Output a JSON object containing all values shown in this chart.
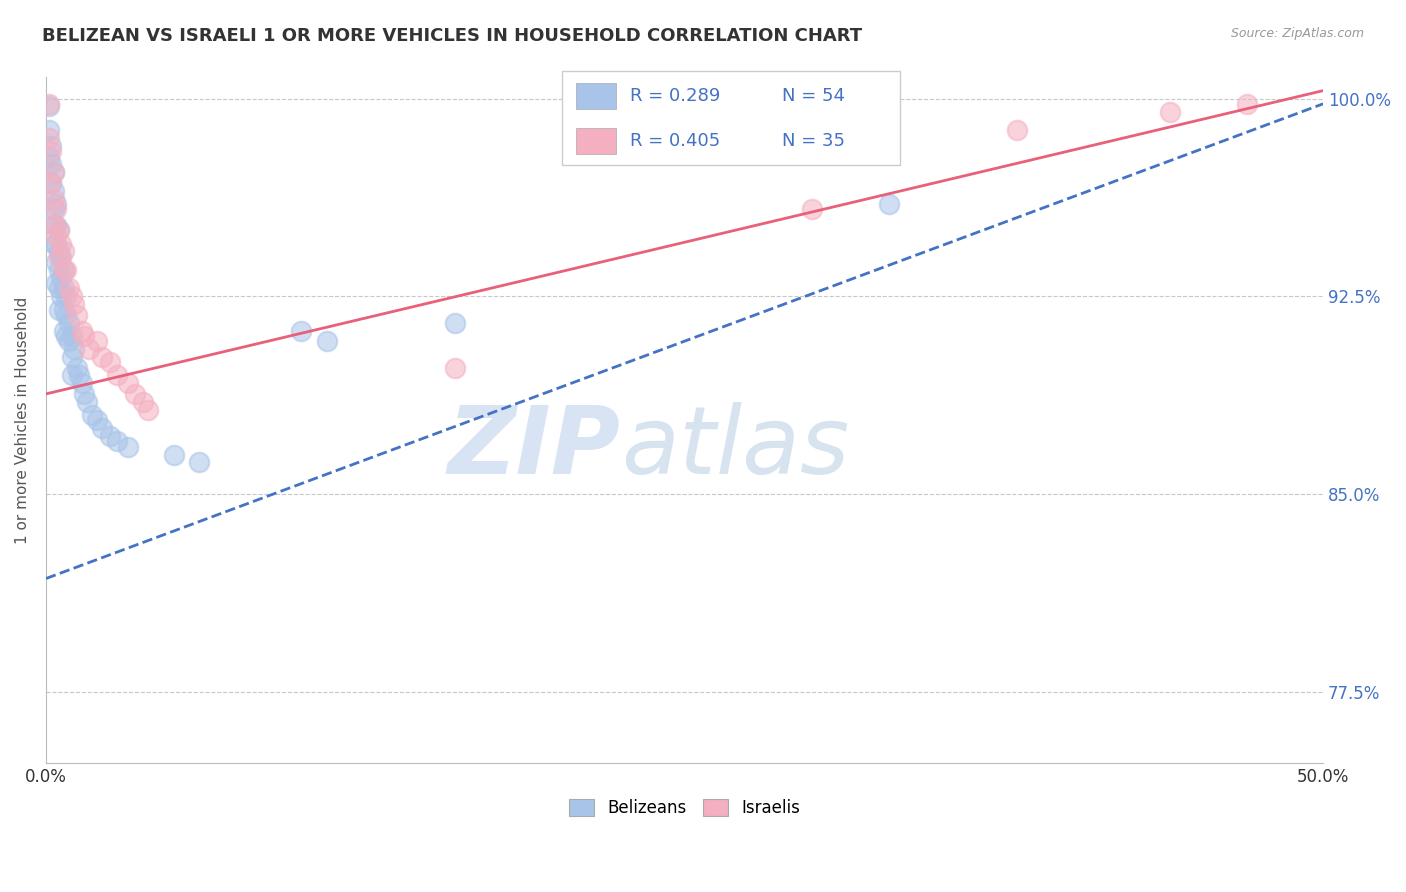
{
  "title": "BELIZEAN VS ISRAELI 1 OR MORE VEHICLES IN HOUSEHOLD CORRELATION CHART",
  "ylabel": "1 or more Vehicles in Household",
  "source": "Source: ZipAtlas.com",
  "xmin": 0.0,
  "xmax": 0.5,
  "ymin": 0.748,
  "ymax": 1.008,
  "yticks": [
    0.775,
    0.85,
    0.925,
    1.0
  ],
  "ytick_labels": [
    "77.5%",
    "85.0%",
    "92.5%",
    "100.0%"
  ],
  "belizean_color": "#a8c4e8",
  "israeli_color": "#f4afc0",
  "belizean_line_color": "#4472c4",
  "israeli_line_color": "#e8607a",
  "watermark_zip": "ZIP",
  "watermark_atlas": "atlas",
  "belizean_pts_x": [
    0.001,
    0.001,
    0.001,
    0.002,
    0.002,
    0.002,
    0.003,
    0.003,
    0.003,
    0.003,
    0.003,
    0.004,
    0.004,
    0.004,
    0.004,
    0.004,
    0.005,
    0.005,
    0.005,
    0.005,
    0.005,
    0.006,
    0.006,
    0.006,
    0.007,
    0.007,
    0.007,
    0.007,
    0.008,
    0.008,
    0.008,
    0.009,
    0.009,
    0.01,
    0.01,
    0.01,
    0.011,
    0.012,
    0.013,
    0.014,
    0.015,
    0.016,
    0.018,
    0.02,
    0.022,
    0.025,
    0.028,
    0.032,
    0.05,
    0.06,
    0.1,
    0.11,
    0.16,
    0.33
  ],
  "belizean_pts_y": [
    0.997,
    0.988,
    0.978,
    0.982,
    0.975,
    0.968,
    0.972,
    0.965,
    0.958,
    0.952,
    0.945,
    0.96,
    0.952,
    0.945,
    0.938,
    0.93,
    0.95,
    0.942,
    0.935,
    0.928,
    0.92,
    0.94,
    0.932,
    0.925,
    0.935,
    0.928,
    0.92,
    0.912,
    0.925,
    0.918,
    0.91,
    0.915,
    0.908,
    0.91,
    0.902,
    0.895,
    0.905,
    0.898,
    0.895,
    0.892,
    0.888,
    0.885,
    0.88,
    0.878,
    0.875,
    0.872,
    0.87,
    0.868,
    0.865,
    0.862,
    0.912,
    0.908,
    0.915,
    0.96
  ],
  "israeli_pts_x": [
    0.001,
    0.001,
    0.002,
    0.002,
    0.003,
    0.003,
    0.003,
    0.004,
    0.004,
    0.005,
    0.005,
    0.006,
    0.007,
    0.007,
    0.008,
    0.009,
    0.01,
    0.011,
    0.012,
    0.014,
    0.015,
    0.017,
    0.02,
    0.022,
    0.025,
    0.028,
    0.032,
    0.035,
    0.038,
    0.04,
    0.16,
    0.3,
    0.38,
    0.44,
    0.47
  ],
  "israeli_pts_y": [
    0.998,
    0.985,
    0.98,
    0.968,
    0.972,
    0.962,
    0.952,
    0.958,
    0.948,
    0.95,
    0.94,
    0.945,
    0.942,
    0.935,
    0.935,
    0.928,
    0.925,
    0.922,
    0.918,
    0.912,
    0.91,
    0.905,
    0.908,
    0.902,
    0.9,
    0.895,
    0.892,
    0.888,
    0.885,
    0.882,
    0.898,
    0.958,
    0.988,
    0.995,
    0.998
  ],
  "bel_line_x0": 0.0,
  "bel_line_x1": 0.5,
  "bel_line_y0": 0.818,
  "bel_line_y1": 0.998,
  "isr_line_x0": 0.0,
  "isr_line_x1": 0.5,
  "isr_line_y0": 0.888,
  "isr_line_y1": 1.003
}
